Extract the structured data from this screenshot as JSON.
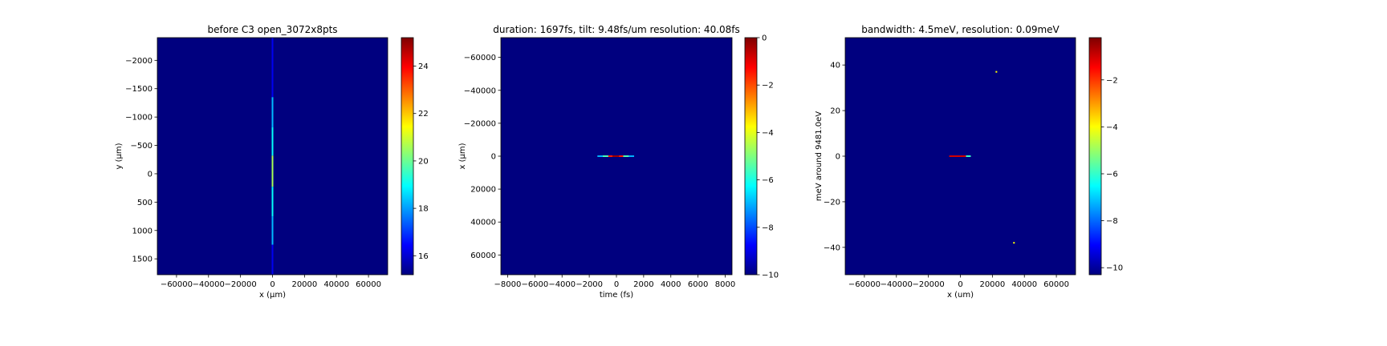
{
  "figure": {
    "background": "#ffffff",
    "plot_background": "#00007f"
  },
  "colormap": {
    "name": "jet",
    "stops": [
      "#00007f",
      "#0000ff",
      "#007fff",
      "#00ffff",
      "#7fff7f",
      "#ffff00",
      "#ff7f00",
      "#ff0000",
      "#7f0000"
    ]
  },
  "chart_data": [
    {
      "type": "heatmap",
      "title": "before C3 open_3072x8pts",
      "xlabel": "x (μm)",
      "ylabel": "y (μm)",
      "xlim": [
        -72000,
        72000
      ],
      "ylim": [
        1780,
        -2400
      ],
      "xticks": [
        -60000,
        -40000,
        -20000,
        0,
        20000,
        40000,
        60000
      ],
      "xtick_labels": [
        "−60000",
        "−40000",
        "−20000",
        "0",
        "20000",
        "40000",
        "60000"
      ],
      "yticks": [
        -2000,
        -1500,
        -1000,
        -500,
        0,
        500,
        1000,
        1500
      ],
      "ytick_labels": [
        "−2000",
        "−1500",
        "−1000",
        "−500",
        "0",
        "500",
        "1000",
        "1500"
      ],
      "colorbar": {
        "vmin": 15.2,
        "vmax": 25.2,
        "ticks": [
          16,
          18,
          20,
          22,
          24
        ],
        "tick_labels": [
          "16",
          "18",
          "20",
          "22",
          "24"
        ]
      },
      "background_value": 15.2,
      "features": [
        {
          "kind": "vline",
          "x": 0,
          "y0": -2400,
          "y1": 1780,
          "value": 16.3
        },
        {
          "kind": "vline",
          "x": 0,
          "y0": -1350,
          "y1": -820,
          "value": 18.3
        },
        {
          "kind": "vline",
          "x": 0,
          "y0": -820,
          "y1": -320,
          "value": 19.0
        },
        {
          "kind": "vline",
          "x": 0,
          "y0": -320,
          "y1": 230,
          "value": 20.6
        },
        {
          "kind": "vline",
          "x": 0,
          "y0": 230,
          "y1": 750,
          "value": 19.0
        },
        {
          "kind": "vline",
          "x": 0,
          "y0": 750,
          "y1": 1250,
          "value": 18.3
        }
      ]
    },
    {
      "type": "heatmap",
      "title": "duration: 1697fs, tilt: 9.48fs/um resolution: 40.08fs",
      "xlabel": "time (fs)",
      "ylabel": "x (μm)",
      "xlim": [
        -8500,
        8500
      ],
      "ylim": [
        72000,
        -72000
      ],
      "xticks": [
        -8000,
        -6000,
        -4000,
        -2000,
        0,
        2000,
        4000,
        6000,
        8000
      ],
      "xtick_labels": [
        "−8000",
        "−6000",
        "−4000",
        "−2000",
        "0",
        "2000",
        "4000",
        "6000",
        "8000"
      ],
      "yticks": [
        -60000,
        -40000,
        -20000,
        0,
        20000,
        40000,
        60000
      ],
      "ytick_labels": [
        "−60000",
        "−40000",
        "−20000",
        "0",
        "20000",
        "40000",
        "60000"
      ],
      "colorbar": {
        "vmin": -10,
        "vmax": 0,
        "ticks": [
          -10,
          -8,
          -6,
          -4,
          -2,
          0
        ],
        "tick_labels": [
          "−10",
          "−8",
          "−6",
          "−4",
          "−2",
          "0"
        ]
      },
      "background_value": -10,
      "features": [
        {
          "kind": "hline",
          "y": 0,
          "x0": -1400,
          "x1": 1300,
          "value": -7.0
        },
        {
          "kind": "hline",
          "y": 0,
          "x0": -1000,
          "x1": 900,
          "value": -5.5
        },
        {
          "kind": "hline",
          "y": 0,
          "x0": -600,
          "x1": 500,
          "value": -1.5
        },
        {
          "kind": "hline",
          "y": 0,
          "x0": -300,
          "x1": 200,
          "value": -0.3
        }
      ]
    },
    {
      "type": "heatmap",
      "title": "bandwidth: 4.5meV, resolution: 0.09meV",
      "xlabel": "x (um)",
      "ylabel": "meV around 9481.0eV",
      "xlim": [
        -72000,
        72000
      ],
      "ylim": [
        -52,
        52
      ],
      "xticks": [
        -60000,
        -40000,
        -20000,
        0,
        20000,
        40000,
        60000
      ],
      "xtick_labels": [
        "−60000",
        "−40000",
        "−20000",
        "0",
        "20000",
        "40000",
        "60000"
      ],
      "yticks": [
        -40,
        -20,
        0,
        20,
        40
      ],
      "ytick_labels": [
        "−40",
        "−20",
        "0",
        "20",
        "40"
      ],
      "colorbar": {
        "vmin": -10.3,
        "vmax": -0.2,
        "ticks": [
          -10,
          -8,
          -6,
          -4,
          -2
        ],
        "tick_labels": [
          "−10",
          "−8",
          "−6",
          "−4",
          "−2"
        ]
      },
      "background_value": -10.3,
      "features": [
        {
          "kind": "hline",
          "y": 0,
          "x0": -7000,
          "x1": 6500,
          "value": -1.0
        },
        {
          "kind": "hline",
          "y": 0,
          "x0": 3500,
          "x1": 6500,
          "value": -6.0
        },
        {
          "kind": "dot",
          "x": 22500,
          "y": 37,
          "value": -4.0
        },
        {
          "kind": "dot",
          "x": 33500,
          "y": -38,
          "value": -4.0
        }
      ]
    }
  ]
}
